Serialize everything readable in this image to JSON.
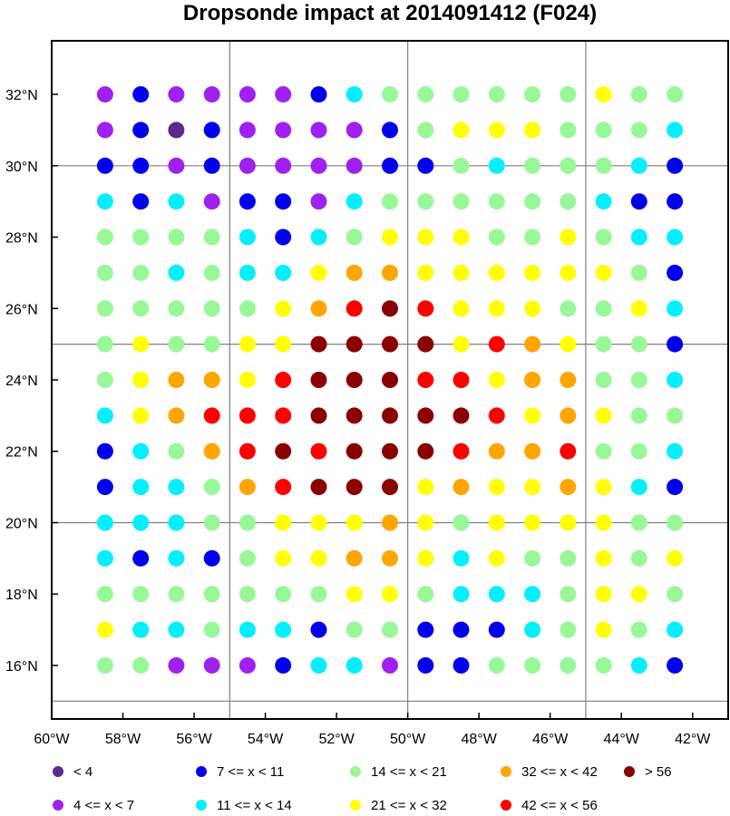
{
  "chart_data": {
    "type": "scatter",
    "title": "Dropsonde impact at 2014091412 (F024)",
    "xlabel": "",
    "ylabel": "",
    "xlim": [
      -60,
      -41
    ],
    "ylim": [
      14.5,
      33.5
    ],
    "x_ticks": [
      -60,
      -58,
      -56,
      -54,
      -52,
      -50,
      -48,
      -46,
      -44,
      -42
    ],
    "x_tick_labels": [
      "60°W",
      "58°W",
      "56°W",
      "54°W",
      "52°W",
      "50°W",
      "48°W",
      "46°W",
      "44°W",
      "42°W"
    ],
    "y_ticks": [
      16,
      18,
      20,
      22,
      24,
      26,
      28,
      30,
      32
    ],
    "y_tick_labels": [
      "16°N",
      "18°N",
      "20°N",
      "22°N",
      "24°N",
      "26°N",
      "28°N",
      "30°N",
      "32°N"
    ],
    "grid_lon": [
      -55,
      -50,
      -45
    ],
    "grid_lat": [
      15,
      20,
      25,
      30
    ],
    "lons": [
      -58.5,
      -57.5,
      -56.5,
      -55.5,
      -54.5,
      -53.5,
      -52.5,
      -51.5,
      -50.5,
      -49.5,
      -48.5,
      -47.5,
      -46.5,
      -45.5,
      -44.5,
      -43.5,
      -42.5
    ],
    "lats": [
      32,
      31,
      30,
      29,
      28,
      27,
      26,
      25,
      24,
      23,
      22,
      21,
      20,
      19,
      18,
      17,
      16
    ],
    "category_colors": {
      "1": "#5b2a8e",
      "2": "#a020f0",
      "3": "#0000ee",
      "4": "#00f0ff",
      "5": "#98f898",
      "6": "#ffff00",
      "7": "#ffa500",
      "8": "#ff0000",
      "9": "#8b0000"
    },
    "grid_categories": [
      [
        2,
        3,
        2,
        2,
        2,
        2,
        3,
        4,
        5,
        5,
        5,
        5,
        5,
        5,
        6,
        5,
        5
      ],
      [
        2,
        3,
        1,
        3,
        2,
        2,
        2,
        2,
        3,
        5,
        6,
        6,
        6,
        5,
        5,
        5,
        4
      ],
      [
        3,
        3,
        2,
        3,
        2,
        2,
        2,
        2,
        3,
        3,
        5,
        4,
        5,
        5,
        5,
        4,
        3
      ],
      [
        4,
        3,
        4,
        2,
        3,
        3,
        2,
        4,
        5,
        5,
        5,
        5,
        5,
        5,
        4,
        3,
        3
      ],
      [
        5,
        5,
        5,
        5,
        4,
        3,
        4,
        5,
        6,
        6,
        6,
        5,
        5,
        6,
        5,
        4,
        4
      ],
      [
        5,
        5,
        4,
        5,
        4,
        4,
        6,
        7,
        7,
        6,
        6,
        6,
        6,
        6,
        6,
        5,
        3
      ],
      [
        5,
        5,
        5,
        5,
        5,
        6,
        7,
        8,
        9,
        8,
        6,
        6,
        6,
        5,
        5,
        6,
        4
      ],
      [
        5,
        6,
        5,
        5,
        6,
        6,
        9,
        9,
        9,
        9,
        6,
        8,
        7,
        6,
        5,
        5,
        3
      ],
      [
        5,
        6,
        7,
        7,
        6,
        8,
        9,
        9,
        9,
        8,
        8,
        6,
        7,
        7,
        5,
        5,
        4
      ],
      [
        4,
        6,
        7,
        8,
        8,
        8,
        9,
        9,
        9,
        9,
        9,
        8,
        6,
        7,
        6,
        5,
        5
      ],
      [
        3,
        4,
        5,
        7,
        8,
        9,
        8,
        9,
        9,
        9,
        8,
        7,
        7,
        8,
        5,
        5,
        4
      ],
      [
        3,
        4,
        4,
        5,
        7,
        8,
        9,
        9,
        9,
        6,
        7,
        6,
        6,
        7,
        6,
        4,
        3
      ],
      [
        4,
        4,
        4,
        5,
        5,
        6,
        6,
        6,
        7,
        6,
        5,
        6,
        6,
        6,
        6,
        5,
        5
      ],
      [
        4,
        3,
        4,
        3,
        5,
        6,
        6,
        7,
        7,
        6,
        4,
        6,
        5,
        5,
        6,
        5,
        6
      ],
      [
        5,
        5,
        5,
        5,
        5,
        5,
        5,
        6,
        6,
        5,
        4,
        4,
        4,
        5,
        6,
        6,
        5
      ],
      [
        6,
        4,
        4,
        5,
        4,
        4,
        3,
        5,
        5,
        3,
        3,
        3,
        4,
        5,
        6,
        5,
        4
      ],
      [
        5,
        5,
        2,
        2,
        2,
        3,
        4,
        4,
        2,
        3,
        3,
        5,
        5,
        5,
        5,
        4,
        3
      ]
    ],
    "legend": [
      {
        "cat": "1",
        "label": "<  4"
      },
      {
        "cat": "3",
        "label": "7 <= x < 11"
      },
      {
        "cat": "5",
        "label": "14 <= x < 21"
      },
      {
        "cat": "7",
        "label": "32 <= x < 42"
      },
      {
        "cat": "9",
        "label": "> 56"
      },
      {
        "cat": "2",
        "label": "4 <= x <  7"
      },
      {
        "cat": "4",
        "label": "11 <= x < 14"
      },
      {
        "cat": "6",
        "label": "21 <= x < 32"
      },
      {
        "cat": "8",
        "label": "42 <= x < 56"
      }
    ]
  }
}
